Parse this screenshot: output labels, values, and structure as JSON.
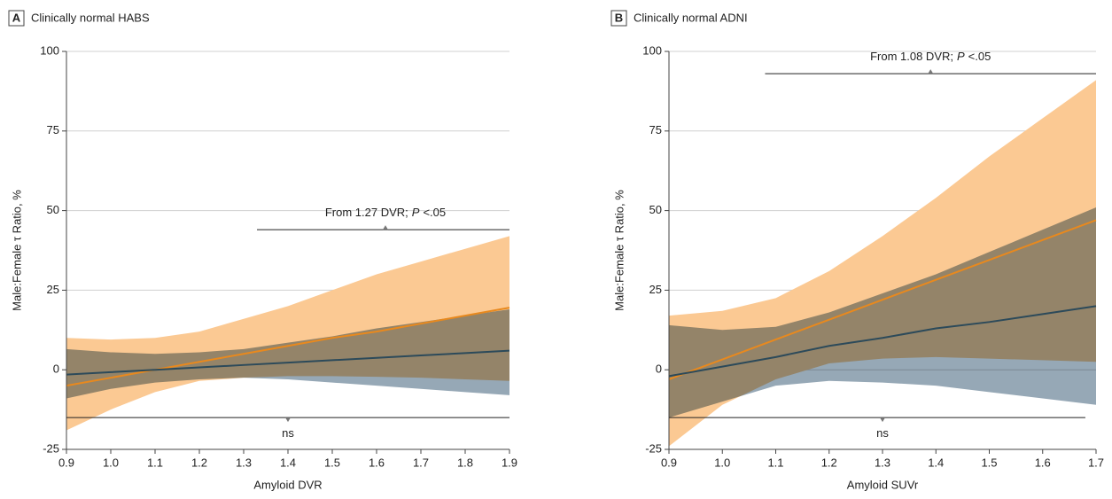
{
  "chart_data": [
    {
      "type": "band-line",
      "panel": "A",
      "title": "Clinically normal HABS",
      "xlabel": "Amyloid DVR",
      "ylabel": "Male:Female τ Ratio, %",
      "x": [
        0.9,
        1.0,
        1.1,
        1.2,
        1.3,
        1.4,
        1.5,
        1.6,
        1.7,
        1.8,
        1.9
      ],
      "xlim": [
        0.9,
        1.9
      ],
      "xticks": [
        0.9,
        {
          "value": 1,
          "label": "1.0"
        },
        1.1,
        1.2,
        1.3,
        1.4,
        1.5,
        1.6,
        1.7,
        1.8,
        1.9
      ],
      "ylim": [
        -25,
        100
      ],
      "yticks": [
        -25,
        0,
        25,
        50,
        75,
        100
      ],
      "grid": true,
      "series": [
        {
          "color": "#e8891e",
          "band_color": "#fbc993",
          "values": [
            -5,
            -2.5,
            0,
            2.5,
            5,
            7.5,
            10,
            12,
            14.5,
            17,
            19.5
          ],
          "lower": [
            -19,
            -12.5,
            -7,
            -3.5,
            -2.5,
            -2,
            -2,
            -2.2,
            -2.5,
            -3,
            -3.5
          ],
          "upper": [
            10,
            9.5,
            10,
            12,
            16,
            20,
            25,
            30,
            34,
            38,
            42
          ]
        },
        {
          "color": "#2c4a5a",
          "band_color": "#96a8b6",
          "values": [
            -1.5,
            -0.75,
            0,
            0.75,
            1.5,
            2.25,
            3,
            3.75,
            4.5,
            5.25,
            6
          ],
          "lower": [
            -9,
            -6,
            -4,
            -3,
            -2.5,
            -3,
            -4,
            -5,
            -6,
            -7,
            -8
          ],
          "upper": [
            6.5,
            5.5,
            5,
            5.5,
            6.5,
            8.5,
            10.5,
            13,
            15,
            17,
            19
          ]
        }
      ],
      "annotations": [
        {
          "text": "From 1.27 DVR;",
          "p": "P",
          "rest": "<.05"
        },
        {
          "text": "ns"
        }
      ]
    },
    {
      "type": "band-line",
      "panel": "B",
      "title": "Clinically normal ADNI",
      "xlabel": "Amyloid SUVr",
      "ylabel": "Male:Female τ Ratio, %",
      "x": [
        0.9,
        1.0,
        1.1,
        1.2,
        1.3,
        1.4,
        1.5,
        1.6,
        1.7
      ],
      "xlim": [
        0.9,
        1.7
      ],
      "xticks": [
        0.9,
        {
          "value": 1,
          "label": "1.0"
        },
        1.1,
        1.2,
        1.3,
        1.4,
        1.5,
        1.6,
        1.7
      ],
      "ylim": [
        -25,
        100
      ],
      "yticks": [
        -25,
        0,
        25,
        50,
        75,
        100
      ],
      "grid": true,
      "series": [
        {
          "color": "#e8891e",
          "band_color": "#fbc993",
          "values": [
            -3,
            3.25,
            9.5,
            15.75,
            22,
            28.25,
            34.5,
            40.75,
            47
          ],
          "lower": [
            -24,
            -11,
            -3,
            2,
            3.5,
            4,
            3.5,
            3,
            2.5
          ],
          "upper": [
            17,
            18.5,
            22.5,
            31,
            42,
            54,
            67,
            79,
            91
          ]
        },
        {
          "color": "#2c4a5a",
          "band_color": "#96a8b6",
          "values": [
            -2,
            1,
            4,
            7.5,
            10,
            13,
            15,
            17.5,
            20
          ],
          "lower": [
            -15,
            -10,
            -5,
            -3.5,
            -4,
            -5,
            -7,
            -9,
            -11
          ],
          "upper": [
            14,
            12.5,
            13.5,
            18,
            24,
            30,
            37,
            44,
            51
          ]
        }
      ],
      "annotations": [
        {
          "text": "From 1.08 DVR;",
          "p": "P",
          "rest": "<.05"
        },
        {
          "text": "ns"
        }
      ]
    }
  ]
}
